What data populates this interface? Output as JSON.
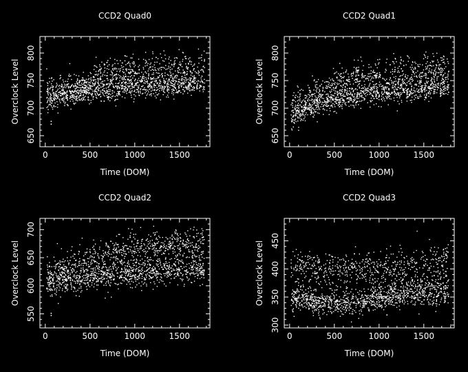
{
  "chart_data": [
    {
      "type": "scatter",
      "title": "CCD2 Quad0",
      "xlabel": "Time (DOM)",
      "ylabel": "Overclock Level",
      "xlim": [
        -60,
        1840
      ],
      "ylim": [
        630,
        830
      ],
      "xticks": [
        0,
        500,
        1000,
        1500
      ],
      "yticks": [
        650,
        700,
        750,
        800
      ],
      "xtick_labels": [
        "0",
        "500",
        "1000",
        "1500"
      ],
      "ytick_labels": [
        "650",
        "700",
        "750",
        "800"
      ],
      "grid": false,
      "trend": {
        "bands": [
          {
            "x": [
              0,
              200,
              400,
              600,
              1000,
              1400,
              1780
            ],
            "y": [
              715,
              725,
              728,
              735,
              740,
              742,
              745
            ],
            "spread": 10,
            "weight": 0.6
          },
          {
            "x": [
              0,
              200,
              400,
              600,
              1000,
              1400,
              1780
            ],
            "y": [
              735,
              740,
              742,
              760,
              768,
              772,
              775
            ],
            "spread": 14,
            "weight": 0.4
          }
        ],
        "outliers": [
          [
            60,
            677
          ],
          [
            60,
            672
          ]
        ],
        "count": 1600
      }
    },
    {
      "type": "scatter",
      "title": "CCD2 Quad1",
      "xlabel": "Time (DOM)",
      "ylabel": "Overclock Level",
      "xlim": [
        -60,
        1840
      ],
      "ylim": [
        630,
        830
      ],
      "xticks": [
        0,
        500,
        1000,
        1500
      ],
      "yticks": [
        650,
        700,
        750,
        800
      ],
      "xtick_labels": [
        "0",
        "500",
        "1000",
        "1500"
      ],
      "ytick_labels": [
        "650",
        "700",
        "750",
        "800"
      ],
      "grid": false,
      "trend": {
        "bands": [
          {
            "x": [
              0,
              200,
              400,
              600,
              1000,
              1400,
              1780
            ],
            "y": [
              685,
              700,
              712,
              720,
              730,
              735,
              738
            ],
            "spread": 10,
            "weight": 0.6
          },
          {
            "x": [
              0,
              200,
              400,
              600,
              1000,
              1400,
              1780
            ],
            "y": [
              700,
              720,
              735,
              750,
              762,
              768,
              772
            ],
            "spread": 14,
            "weight": 0.4
          }
        ],
        "outliers": [],
        "count": 1600
      }
    },
    {
      "type": "scatter",
      "title": "CCD2 Quad2",
      "xlabel": "Time (DOM)",
      "ylabel": "Overclock Level",
      "xlim": [
        -60,
        1840
      ],
      "ylim": [
        525,
        720
      ],
      "xticks": [
        0,
        500,
        1000,
        1500
      ],
      "yticks": [
        550,
        600,
        650,
        700
      ],
      "xtick_labels": [
        "0",
        "500",
        "1000",
        "1500"
      ],
      "ytick_labels": [
        "550",
        "600",
        "650",
        "700"
      ],
      "grid": false,
      "trend": {
        "bands": [
          {
            "x": [
              0,
              200,
              400,
              600,
              1000,
              1400,
              1780
            ],
            "y": [
              600,
              610,
              612,
              618,
              625,
              628,
              630
            ],
            "spread": 12,
            "weight": 0.6
          },
          {
            "x": [
              0,
              200,
              400,
              600,
              1000,
              1400,
              1780
            ],
            "y": [
              625,
              635,
              640,
              655,
              668,
              672,
              675
            ],
            "spread": 14,
            "weight": 0.4
          }
        ],
        "outliers": [
          [
            60,
            552
          ],
          [
            60,
            548
          ]
        ],
        "count": 1600
      }
    },
    {
      "type": "scatter",
      "title": "CCD2 Quad3",
      "xlabel": "Time (DOM)",
      "ylabel": "Overclock Level",
      "xlim": [
        -60,
        1840
      ],
      "ylim": [
        295,
        490
      ],
      "xticks": [
        0,
        500,
        1000,
        1500
      ],
      "yticks": [
        300,
        350,
        400,
        450
      ],
      "xtick_labels": [
        "0",
        "500",
        "1000",
        "1500"
      ],
      "ytick_labels": [
        "300",
        "350",
        "400",
        "450"
      ],
      "grid": false,
      "trend": {
        "bands": [
          {
            "x": [
              0,
              200,
              400,
              600,
              800,
              1000,
              1400,
              1780
            ],
            "y": [
              355,
              345,
              340,
              338,
              338,
              348,
              365,
              368
            ],
            "spread": 12,
            "weight": 0.45
          },
          {
            "x": [
              0,
              200,
              400,
              600,
              1000,
              1400,
              1780
            ],
            "y": [
              400,
              402,
              400,
              398,
              400,
              408,
              415
            ],
            "spread": 16,
            "weight": 0.35
          },
          {
            "x": [
              0,
              500,
              1000,
              1500,
              1780
            ],
            "y": [
              345,
              342,
              350,
              345,
              348
            ],
            "spread": 8,
            "weight": 0.2
          }
        ],
        "outliers": [],
        "count": 1700
      }
    }
  ]
}
